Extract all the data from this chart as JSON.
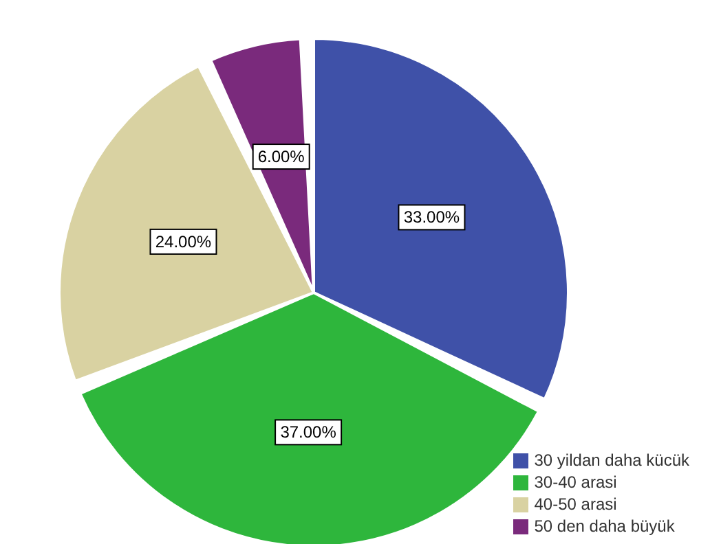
{
  "chart_data": {
    "type": "pie",
    "categories": [
      "30 yildan daha kücük",
      "30-40 arasi",
      "40-50 arasi",
      "50 den daha büyük"
    ],
    "values": [
      33,
      37,
      24,
      6
    ],
    "colors": [
      "#3f51a8",
      "#2eb63c",
      "#d9d2a2",
      "#7a2a7c"
    ],
    "value_labels": [
      "33.00%",
      "37.00%",
      "24.00%",
      "6.00%"
    ],
    "legend": "bottom right"
  }
}
